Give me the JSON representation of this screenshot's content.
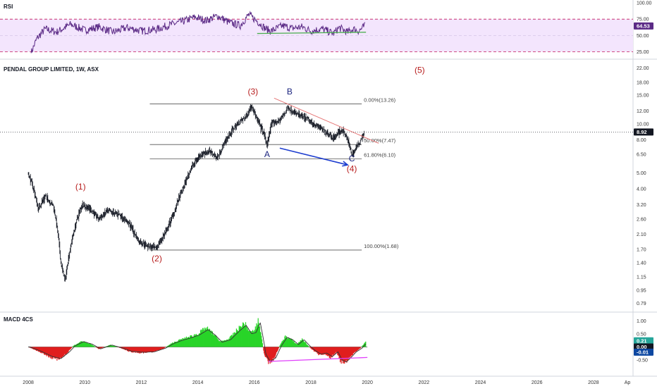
{
  "chart_data": [
    {
      "type": "line",
      "pane": "rsi",
      "title": "RSI",
      "y_ticks": [
        "100.00",
        "75.00",
        "50.00",
        "25.00"
      ],
      "ylim": [
        18,
        100
      ],
      "bands": {
        "upper": 75,
        "lower": 25
      },
      "last_value": "64.53",
      "colors": {
        "line": "#5b2a86",
        "band_fill": "#f3e5fd",
        "band_line": "#c2185b",
        "trend": "#4caf50",
        "badge": "#5b2a86"
      },
      "series_anchors": [
        [
          2008.1,
          23
        ],
        [
          2008.3,
          45
        ],
        [
          2008.6,
          60
        ],
        [
          2009.0,
          55
        ],
        [
          2009.5,
          67
        ],
        [
          2010.0,
          58
        ],
        [
          2010.5,
          63
        ],
        [
          2011.0,
          55
        ],
        [
          2011.5,
          62
        ],
        [
          2012.0,
          57
        ],
        [
          2012.5,
          59
        ],
        [
          2013.0,
          66
        ],
        [
          2013.5,
          72
        ],
        [
          2013.9,
          78
        ],
        [
          2014.3,
          73
        ],
        [
          2014.7,
          80
        ],
        [
          2015.1,
          70
        ],
        [
          2015.5,
          65
        ],
        [
          2015.8,
          82
        ],
        [
          2016.1,
          72
        ],
        [
          2016.4,
          60
        ],
        [
          2016.6,
          57
        ],
        [
          2017.0,
          65
        ],
        [
          2017.3,
          61
        ],
        [
          2017.7,
          63
        ],
        [
          2018.0,
          57
        ],
        [
          2018.4,
          60
        ],
        [
          2018.8,
          53
        ],
        [
          2019.0,
          62
        ],
        [
          2019.3,
          55
        ],
        [
          2019.5,
          60
        ],
        [
          2019.7,
          57
        ],
        [
          2019.92,
          65
        ]
      ],
      "trendline": [
        [
          2016.1,
          53
        ],
        [
          2019.95,
          55
        ]
      ]
    },
    {
      "type": "line",
      "pane": "price",
      "title": "PENDAL GROUP LIMITED, 1W, ASX",
      "scale": "log",
      "ylim": [
        0.72,
        24
      ],
      "y_ticks": [
        "22.00",
        "18.00",
        "15.00",
        "12.00",
        "10.00",
        "8.00",
        "6.50",
        "5.00",
        "4.00",
        "3.20",
        "2.60",
        "2.10",
        "1.70",
        "1.40",
        "1.15",
        "0.95",
        "0.79"
      ],
      "last_price": "8.92",
      "colors": {
        "bar": "#131722",
        "fib": "#555555",
        "trend": "#e57373",
        "arrow": "#1e3ecf",
        "badge": "#131722"
      },
      "series_anchors": [
        [
          2008.0,
          4.9
        ],
        [
          2008.15,
          4.2
        ],
        [
          2008.35,
          3.0
        ],
        [
          2008.6,
          3.6
        ],
        [
          2008.9,
          3.1
        ],
        [
          2009.15,
          1.4
        ],
        [
          2009.3,
          1.08
        ],
        [
          2009.45,
          1.6
        ],
        [
          2009.7,
          2.5
        ],
        [
          2009.9,
          3.2
        ],
        [
          2010.2,
          3.0
        ],
        [
          2010.5,
          2.6
        ],
        [
          2010.8,
          2.9
        ],
        [
          2011.2,
          2.8
        ],
        [
          2011.6,
          2.4
        ],
        [
          2011.9,
          1.9
        ],
        [
          2012.2,
          1.8
        ],
        [
          2012.5,
          1.7
        ],
        [
          2012.9,
          2.2
        ],
        [
          2013.2,
          3.0
        ],
        [
          2013.5,
          4.1
        ],
        [
          2013.8,
          5.5
        ],
        [
          2014.1,
          6.5
        ],
        [
          2014.4,
          6.8
        ],
        [
          2014.7,
          6.2
        ],
        [
          2015.0,
          8.0
        ],
        [
          2015.4,
          10.0
        ],
        [
          2015.7,
          11.0
        ],
        [
          2015.9,
          13.0
        ],
        [
          2016.1,
          10.5
        ],
        [
          2016.3,
          9.0
        ],
        [
          2016.45,
          7.4
        ],
        [
          2016.6,
          10.0
        ],
        [
          2016.9,
          10.5
        ],
        [
          2017.2,
          12.5
        ],
        [
          2017.5,
          11.5
        ],
        [
          2017.9,
          10.6
        ],
        [
          2018.2,
          9.8
        ],
        [
          2018.5,
          9.0
        ],
        [
          2018.8,
          8.2
        ],
        [
          2019.1,
          9.2
        ],
        [
          2019.3,
          8.0
        ],
        [
          2019.45,
          6.5
        ],
        [
          2019.65,
          7.3
        ],
        [
          2019.9,
          8.92
        ]
      ],
      "fib_levels": [
        {
          "label": "0.00%(13.26)",
          "value": 13.26
        },
        {
          "label": "50.00%(7.47)",
          "value": 7.47
        },
        {
          "label": "61.80%(6.10)",
          "value": 6.1
        },
        {
          "label": "100.00%(1.68)",
          "value": 1.68
        }
      ],
      "fib_x_start": 2012.3,
      "fib_x_end": 2019.8,
      "trendline": [
        [
          2016.7,
          14.4
        ],
        [
          2020.4,
          7.6
        ]
      ],
      "arrow": [
        [
          2016.9,
          7.1
        ],
        [
          2019.3,
          5.6
        ]
      ],
      "wave_labels": [
        {
          "text": "(1)",
          "x": 2009.85,
          "y": 3.95
        },
        {
          "text": "(2)",
          "x": 2012.55,
          "y": 1.43
        },
        {
          "text": "(3)",
          "x": 2015.95,
          "y": 15.2
        },
        {
          "text": "(4)",
          "x": 2019.45,
          "y": 5.1
        },
        {
          "text": "(5)",
          "x": 2021.85,
          "y": 20.6
        }
      ],
      "abc_labels": [
        {
          "text": "A",
          "x": 2016.45,
          "y": 6.25
        },
        {
          "text": "B",
          "x": 2017.25,
          "y": 15.2
        },
        {
          "text": "C",
          "x": 2019.45,
          "y": 5.9
        }
      ]
    },
    {
      "type": "bar",
      "pane": "macd",
      "title": "MACD 4CS",
      "y_ticks": [
        "1.00",
        "0.50",
        "-0.50"
      ],
      "ylim": [
        -0.9,
        1.25
      ],
      "badges": [
        "0.21",
        "0.00",
        "-0.01"
      ],
      "colors": {
        "positive": "#29d429",
        "negative": "#e01e1e",
        "line": "#333333",
        "trend": "#e040fb",
        "badge_green": "#26a69a",
        "badge_blue": "#0d47a1"
      },
      "hist_anchors": [
        [
          2008.0,
          0.0
        ],
        [
          2008.4,
          -0.18
        ],
        [
          2008.8,
          -0.4
        ],
        [
          2009.1,
          -0.48
        ],
        [
          2009.4,
          -0.2
        ],
        [
          2009.6,
          0.05
        ],
        [
          2009.9,
          0.22
        ],
        [
          2010.2,
          0.12
        ],
        [
          2010.5,
          -0.08
        ],
        [
          2010.9,
          0.08
        ],
        [
          2011.3,
          -0.05
        ],
        [
          2011.6,
          -0.18
        ],
        [
          2012.0,
          -0.22
        ],
        [
          2012.4,
          -0.2
        ],
        [
          2012.8,
          -0.05
        ],
        [
          2013.1,
          0.15
        ],
        [
          2013.4,
          0.28
        ],
        [
          2013.7,
          0.38
        ],
        [
          2014.0,
          0.5
        ],
        [
          2014.3,
          0.72
        ],
        [
          2014.55,
          0.5
        ],
        [
          2014.8,
          0.2
        ],
        [
          2015.1,
          0.3
        ],
        [
          2015.4,
          0.65
        ],
        [
          2015.65,
          0.9
        ],
        [
          2015.85,
          0.55
        ],
        [
          2016.0,
          0.6
        ],
        [
          2016.15,
          1.0
        ],
        [
          2016.25,
          0.4
        ],
        [
          2016.35,
          -0.3
        ],
        [
          2016.5,
          -0.6
        ],
        [
          2016.7,
          -0.45
        ],
        [
          2016.9,
          0.05
        ],
        [
          2017.1,
          0.4
        ],
        [
          2017.3,
          0.3
        ],
        [
          2017.5,
          0.1
        ],
        [
          2017.7,
          0.3
        ],
        [
          2017.9,
          0.05
        ],
        [
          2018.1,
          -0.15
        ],
        [
          2018.3,
          -0.3
        ],
        [
          2018.5,
          -0.25
        ],
        [
          2018.7,
          -0.4
        ],
        [
          2018.9,
          -0.2
        ],
        [
          2019.05,
          -0.55
        ],
        [
          2019.2,
          -0.62
        ],
        [
          2019.35,
          -0.45
        ],
        [
          2019.55,
          -0.2
        ],
        [
          2019.75,
          -0.05
        ],
        [
          2019.95,
          0.21
        ]
      ],
      "trendline": [
        [
          2016.5,
          -0.55
        ],
        [
          2020.0,
          -0.4
        ]
      ]
    }
  ],
  "time_axis": {
    "labels": [
      "2008",
      "2010",
      "2012",
      "2014",
      "2016",
      "2018",
      "2020",
      "2022",
      "2024",
      "2026",
      "2028",
      "Ap"
    ],
    "positions": [
      2008,
      2010,
      2012,
      2014,
      2016,
      2018,
      2020,
      2022,
      2024,
      2026,
      2028,
      2029.2
    ],
    "range": [
      2007.0,
      2029.4
    ]
  }
}
